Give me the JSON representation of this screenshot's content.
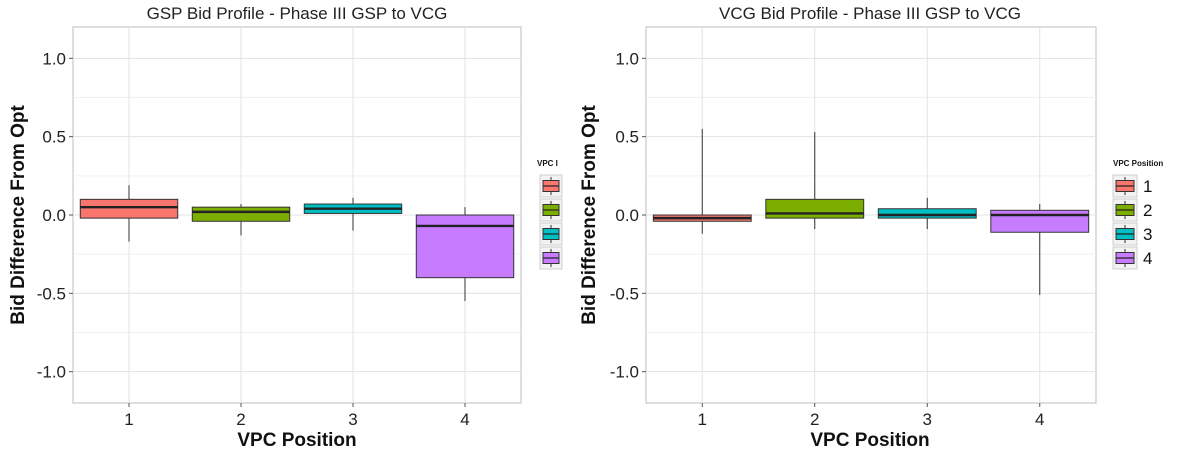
{
  "chart_data": [
    {
      "type": "box",
      "title": "GSP Bid Profile - Phase III GSP to VCG",
      "xlabel": "VPC Position",
      "ylabel": "Bid Difference From Opt",
      "categories": [
        "1",
        "2",
        "3",
        "4"
      ],
      "ylim": [
        -1.2,
        1.2
      ],
      "yticks": [
        1.0,
        0.5,
        0.0,
        -0.5,
        -1.0
      ],
      "ytick_labels": [
        "1.0",
        "0.5",
        "0.0",
        "-0.5",
        "-1.0"
      ],
      "grid": true,
      "legend": {
        "title": "VPC I",
        "labels": [
          "",
          "",
          "",
          ""
        ],
        "placement": "right"
      },
      "colors": [
        "#F8766D",
        "#7CAE00",
        "#00BFC4",
        "#C77CFF"
      ],
      "boxes": [
        {
          "category": "1",
          "min": -0.17,
          "q1": -0.02,
          "median": 0.05,
          "q3": 0.1,
          "max": 0.19
        },
        {
          "category": "2",
          "min": -0.13,
          "q1": -0.04,
          "median": 0.02,
          "q3": 0.05,
          "max": 0.07
        },
        {
          "category": "3",
          "min": -0.1,
          "q1": 0.01,
          "median": 0.04,
          "q3": 0.07,
          "max": 0.11
        },
        {
          "category": "4",
          "min": -0.55,
          "q1": -0.4,
          "median": -0.07,
          "q3": 0.0,
          "max": 0.05
        }
      ]
    },
    {
      "type": "box",
      "title": "VCG Bid Profile - Phase III GSP to VCG",
      "xlabel": "VPC Position",
      "ylabel": "Bid Difference From Opt",
      "categories": [
        "1",
        "2",
        "3",
        "4"
      ],
      "ylim": [
        -1.2,
        1.2
      ],
      "yticks": [
        1.0,
        0.5,
        0.0,
        -0.5,
        -1.0
      ],
      "ytick_labels": [
        "1.0",
        "0.5",
        "0.0",
        "-0.5",
        "-1.0"
      ],
      "grid": true,
      "legend": {
        "title": "VPC Position",
        "labels": [
          "1",
          "2",
          "3",
          "4"
        ],
        "placement": "right"
      },
      "colors": [
        "#F8766D",
        "#7CAE00",
        "#00BFC4",
        "#C77CFF"
      ],
      "boxes": [
        {
          "category": "1",
          "min": -0.12,
          "q1": -0.04,
          "median": -0.02,
          "q3": 0.0,
          "max": 0.55
        },
        {
          "category": "2",
          "min": -0.09,
          "q1": -0.02,
          "median": 0.01,
          "q3": 0.1,
          "max": 0.53
        },
        {
          "category": "3",
          "min": -0.09,
          "q1": -0.02,
          "median": 0.0,
          "q3": 0.04,
          "max": 0.11
        },
        {
          "category": "4",
          "min": -0.51,
          "q1": -0.11,
          "median": 0.0,
          "q3": 0.03,
          "max": 0.07
        }
      ]
    }
  ]
}
